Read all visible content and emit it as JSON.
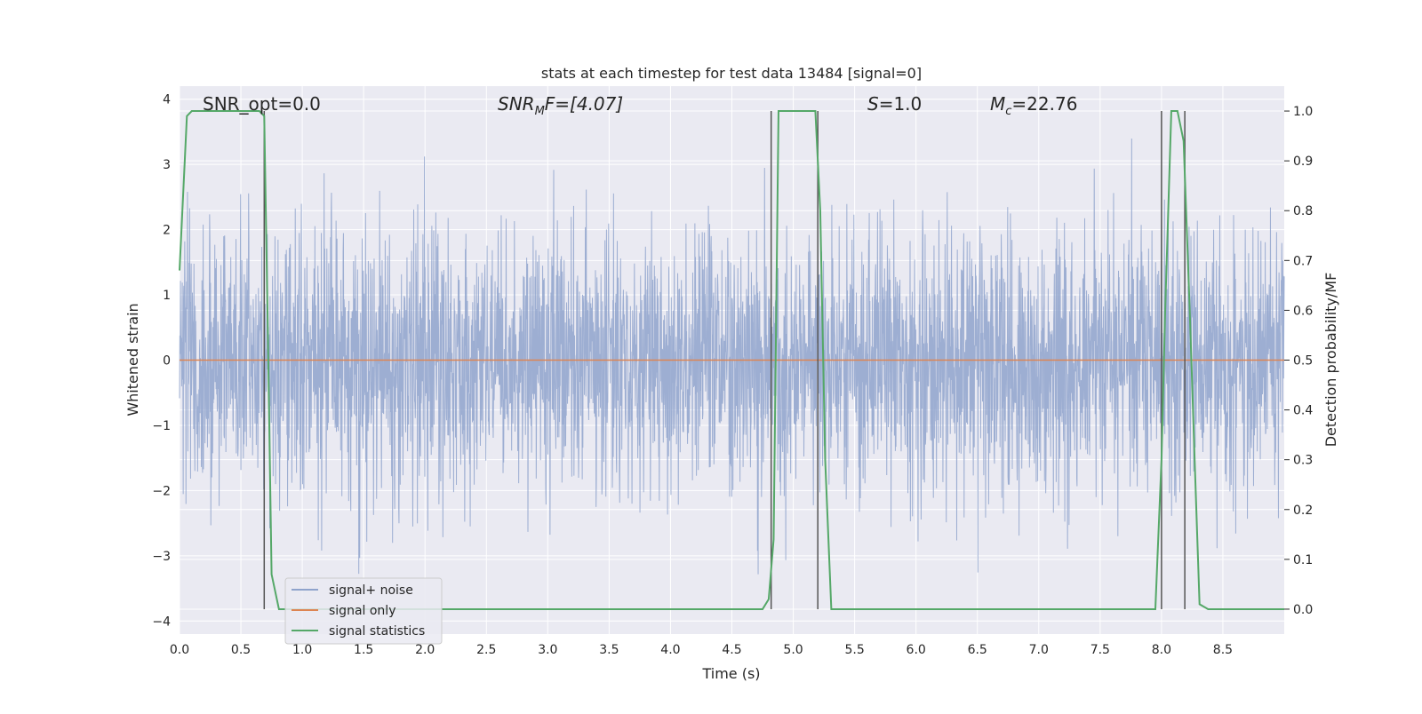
{
  "chart_data": {
    "type": "line",
    "title": "stats at each timestep for test data 13484 [signal=0]",
    "xlabel": "Time (s)",
    "ylabel": "Whitened strain",
    "y2label": "Detection probability/MF",
    "xlim": [
      0.0,
      9.0
    ],
    "ylim": [
      -4.2,
      4.2
    ],
    "y2lim": [
      -0.05,
      1.05
    ],
    "x_ticks": [
      "0.0",
      "0.5",
      "1.0",
      "1.5",
      "2.0",
      "2.5",
      "3.0",
      "3.5",
      "4.0",
      "4.5",
      "5.0",
      "5.5",
      "6.0",
      "6.5",
      "7.0",
      "7.5",
      "8.0",
      "8.5"
    ],
    "y_ticks": [
      "−4",
      "−3",
      "−2",
      "−1",
      "0",
      "1",
      "2",
      "3",
      "4"
    ],
    "y2_ticks": [
      "0.0",
      "0.1",
      "0.2",
      "0.3",
      "0.4",
      "0.5",
      "0.6",
      "0.7",
      "0.8",
      "0.9",
      "1.0"
    ],
    "grid": true,
    "legend_position": "lower-left",
    "annotations": {
      "snr_opt": "SNR_opt=0.0",
      "snr_mf_symbol": "SNR",
      "snr_mf_sub": "M",
      "snr_mf_rest": "F=[4.07]",
      "s_symbol": "S",
      "s_rest": "=1.0",
      "mc_symbol": "M",
      "mc_sub": "c",
      "mc_rest": "=22.76"
    },
    "series": [
      {
        "name": "signal+ noise",
        "color": "#8fa3cc",
        "noise_std": 1.0,
        "x_range": [
          0.0,
          9.0
        ]
      },
      {
        "name": "signal only",
        "color": "#dd8452",
        "x_range": [
          0.0,
          9.0
        ],
        "value": 0.0
      },
      {
        "name": "signal statistics",
        "color": "#55a868",
        "axis": "secondary",
        "x": [
          0.0,
          0.06,
          0.1,
          0.2,
          0.5,
          0.65,
          0.69,
          0.72,
          0.75,
          0.81,
          1.0,
          2.0,
          3.0,
          4.0,
          4.5,
          4.75,
          4.8,
          4.84,
          4.88,
          5.0,
          5.1,
          5.18,
          5.22,
          5.26,
          5.31,
          5.5,
          6.0,
          7.0,
          7.5,
          7.95,
          8.0,
          8.03,
          8.08,
          8.13,
          8.18,
          8.23,
          8.27,
          8.31,
          8.38,
          8.5,
          9.0
        ],
        "y": [
          0.68,
          0.99,
          1.0,
          1.0,
          1.0,
          1.0,
          0.99,
          0.55,
          0.07,
          0.0,
          0.0,
          0.0,
          0.0,
          0.0,
          0.0,
          0.0,
          0.02,
          0.14,
          1.0,
          1.0,
          1.0,
          1.0,
          0.8,
          0.3,
          0.0,
          0.0,
          0.0,
          0.0,
          0.0,
          0.0,
          0.3,
          0.6,
          1.0,
          1.0,
          0.94,
          0.6,
          0.3,
          0.01,
          0.0,
          0.0,
          0.0
        ]
      }
    ],
    "vertical_markers": {
      "color": "#555555",
      "x": [
        0.69,
        4.82,
        5.2,
        8.0,
        8.19
      ]
    }
  }
}
